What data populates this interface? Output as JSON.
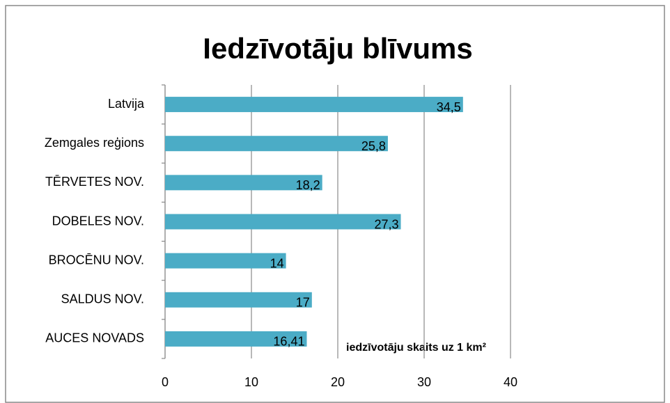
{
  "chart_data": {
    "type": "bar",
    "orientation": "horizontal",
    "title": "Iedzīvotāju blīvums",
    "x_axis_label": "iedzīvotāju skaits uz 1 km²",
    "categories": [
      "Latvija",
      "Zemgales reģions",
      "TĒRVETES  NOV.",
      "DOBELES NOV.",
      "BROCĒNU NOV.",
      "SALDUS NOV.",
      "AUCES NOVADS"
    ],
    "values": [
      34.5,
      25.8,
      18.2,
      27.3,
      14,
      17,
      16.41
    ],
    "value_labels": [
      "34,5",
      "25,8",
      "18,2",
      "27,3",
      "14",
      "17",
      "16,41"
    ],
    "color": "#4bacc6",
    "xlim": [
      0,
      40
    ],
    "xticks": [
      0,
      10,
      20,
      30,
      40
    ],
    "grid": true
  }
}
